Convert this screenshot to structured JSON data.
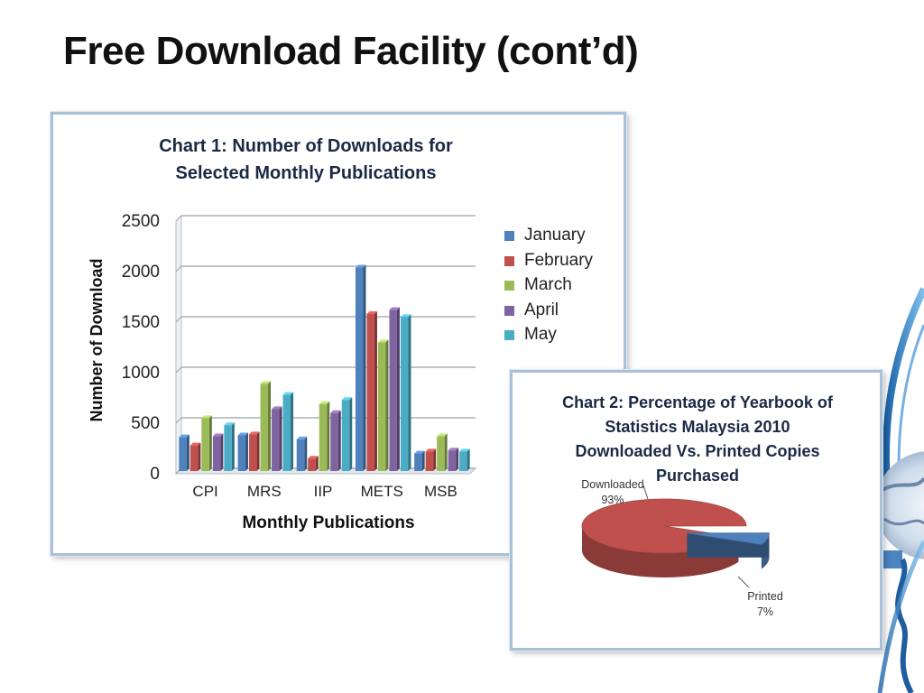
{
  "slide": {
    "title": "Free Download Facility (cont’d)"
  },
  "chart_data": [
    {
      "type": "bar",
      "title": "Chart 1: Number of Downloads for\nSelected Monthly Publications",
      "xlabel": "Monthly Publications",
      "ylabel": "Number of Download",
      "ylim": [
        0,
        2500
      ],
      "yticks": [
        0,
        500,
        1000,
        1500,
        2000,
        2500
      ],
      "grid": true,
      "legend_position": "right",
      "categories": [
        "CPI",
        "MRS",
        "IIP",
        "METS",
        "MSB"
      ],
      "series": [
        {
          "name": "January",
          "color": "#4f81bd",
          "values": [
            360,
            380,
            340,
            2040,
            200
          ]
        },
        {
          "name": "February",
          "color": "#c0504d",
          "values": [
            280,
            390,
            150,
            1580,
            220
          ]
        },
        {
          "name": "March",
          "color": "#9bbb59",
          "values": [
            550,
            890,
            690,
            1300,
            370
          ]
        },
        {
          "name": "April",
          "color": "#8064a2",
          "values": [
            370,
            640,
            600,
            1620,
            230
          ]
        },
        {
          "name": "May",
          "color": "#4bacc6",
          "values": [
            480,
            780,
            730,
            1550,
            220
          ]
        }
      ]
    },
    {
      "type": "pie",
      "title": "Chart 2: Percentage of Yearbook of\nStatistics Malaysia 2010\nDownloaded Vs. Printed Copies\nPurchased",
      "slices": [
        {
          "label": "Downloaded",
          "percent_label": "93%",
          "value": 93,
          "color": "#c0504d"
        },
        {
          "label": "Printed",
          "percent_label": "7%",
          "value": 7,
          "color": "#4f81bd"
        }
      ]
    }
  ]
}
